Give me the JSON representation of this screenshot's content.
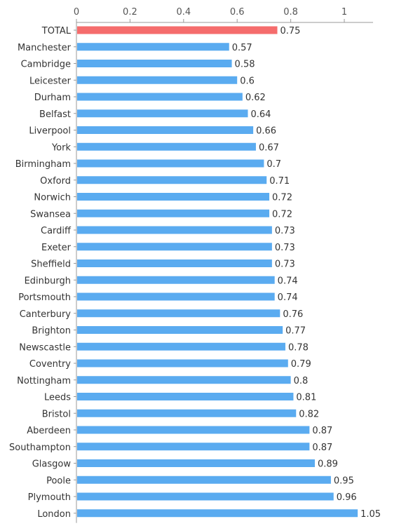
{
  "chart_data": {
    "type": "bar",
    "orientation": "horizontal",
    "title": "",
    "xlabel": "",
    "ylabel": "",
    "xlim": [
      0,
      1.1
    ],
    "x_ticks": [
      0,
      0.2,
      0.4,
      0.6,
      0.8,
      1
    ],
    "x_tick_labels": [
      "0",
      "0.2",
      "0.4",
      "0.6",
      "0.8",
      "1"
    ],
    "x_axis_position": "top",
    "grid": false,
    "categories": [
      "TOTAL",
      "Manchester",
      "Cambridge",
      "Leicester",
      "Durham",
      "Belfast",
      "Liverpool",
      "York",
      "Birmingham",
      "Oxford",
      "Norwich",
      "Swansea",
      "Cardiff",
      "Exeter",
      "Sheffield",
      "Edinburgh",
      "Portsmouth",
      "Canterbury",
      "Brighton",
      "Newscastle",
      "Coventry",
      "Nottingham",
      "Leeds",
      "Bristol",
      "Aberdeen",
      "Southampton",
      "Glasgow",
      "Poole",
      "Plymouth",
      "London"
    ],
    "values": [
      0.75,
      0.57,
      0.58,
      0.6,
      0.62,
      0.64,
      0.66,
      0.67,
      0.7,
      0.71,
      0.72,
      0.72,
      0.73,
      0.73,
      0.73,
      0.74,
      0.74,
      0.76,
      0.77,
      0.78,
      0.79,
      0.8,
      0.81,
      0.82,
      0.87,
      0.87,
      0.89,
      0.95,
      0.96,
      1.05
    ],
    "value_labels": [
      "0.75",
      "0.57",
      "0.58",
      "0.6",
      "0.62",
      "0.64",
      "0.66",
      "0.67",
      "0.7",
      "0.71",
      "0.72",
      "0.72",
      "0.73",
      "0.73",
      "0.73",
      "0.74",
      "0.74",
      "0.76",
      "0.77",
      "0.78",
      "0.79",
      "0.8",
      "0.81",
      "0.82",
      "0.87",
      "0.87",
      "0.89",
      "0.95",
      "0.96",
      "1.05"
    ],
    "highlight_category": "TOTAL",
    "colors": {
      "bar": "#5aabf0",
      "highlight": "#f56c6c",
      "axis": "#999999"
    }
  }
}
